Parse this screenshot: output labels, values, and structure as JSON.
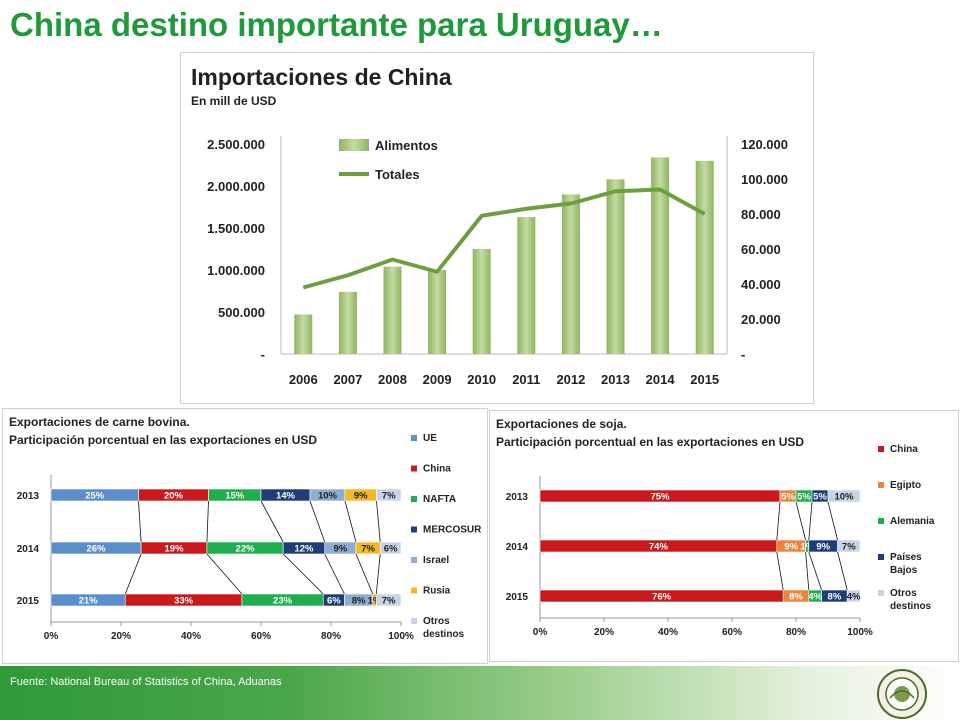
{
  "page_title": "China destino importante para Uruguay…",
  "footer": "Fuente:   National Bureau of Statistics of China, Aduanas",
  "colors": {
    "title": "#1f9a3a",
    "alimentos": "#a9c97e",
    "totales": "#6e9f3f",
    "series": [
      "#5b8fcc",
      "#c9191c",
      "#1fae4e",
      "#1f3d78",
      "#8fadd0",
      "#f5b922",
      "#c7d3e8"
    ]
  },
  "logo_icon": "asociacion-rural-seal-icon",
  "chart_data": [
    {
      "type": "bar",
      "title": "Importaciones de China",
      "subtitle": "En mill de USD",
      "categories": [
        "2006",
        "2007",
        "2008",
        "2009",
        "2010",
        "2011",
        "2012",
        "2013",
        "2014",
        "2015"
      ],
      "series": [
        {
          "name": "Alimentos",
          "type": "bar",
          "axis": "left",
          "values": [
            470000,
            740000,
            1040000,
            1000000,
            1250000,
            1630000,
            1900000,
            2080000,
            2340000,
            2300000
          ]
        },
        {
          "name": "Totales",
          "type": "line",
          "axis": "right",
          "values": [
            38000,
            45000,
            54000,
            47000,
            79000,
            83000,
            86000,
            93000,
            94000,
            80000
          ]
        }
      ],
      "yleft_ticks": [
        "-",
        "500.000",
        "1.000.000",
        "1.500.000",
        "2.000.000",
        "2.500.000"
      ],
      "yleft_lim": [
        0,
        2500000
      ],
      "yright_ticks": [
        "-",
        "20.000",
        "40.000",
        "60.000",
        "80.000",
        "100.000",
        "120.000"
      ],
      "yright_lim": [
        0,
        120000
      ],
      "legend_position": "top-left",
      "grid": false
    },
    {
      "type": "bar",
      "orientation": "horizontal",
      "stacked": "percent",
      "title": "Exportaciones de carne bovina.",
      "subtitle": "Participación porcentual en las exportaciones en USD",
      "categories": [
        "2013",
        "2014",
        "2015"
      ],
      "series": [
        {
          "name": "UE",
          "values": [
            25,
            26,
            21
          ],
          "labels": [
            "25%",
            "26%",
            "21%"
          ]
        },
        {
          "name": "China",
          "values": [
            20,
            19,
            33
          ],
          "labels": [
            "20%",
            "19%",
            "33%"
          ]
        },
        {
          "name": "NAFTA",
          "values": [
            15,
            22,
            23
          ],
          "labels": [
            "15%",
            "22%",
            "23%"
          ]
        },
        {
          "name": "MERCOSUR",
          "values": [
            14,
            12,
            6
          ],
          "labels": [
            "14%",
            "12%",
            "6%"
          ]
        },
        {
          "name": "Israel",
          "values": [
            10,
            9,
            8
          ],
          "labels": [
            "10%",
            "9%",
            "8%"
          ]
        },
        {
          "name": "Rusia",
          "values": [
            9,
            7,
            1
          ],
          "labels": [
            "9%",
            "7%",
            "1%"
          ]
        },
        {
          "name": "Otros destinos",
          "values": [
            7,
            6,
            7
          ],
          "labels": [
            "7%",
            "6%",
            "7%"
          ]
        }
      ],
      "x_ticks": [
        "0%",
        "20%",
        "40%",
        "60%",
        "80%",
        "100%"
      ],
      "xlim": [
        0,
        100
      ],
      "legend_position": "right"
    },
    {
      "type": "bar",
      "orientation": "horizontal",
      "stacked": "percent",
      "title": "Exportaciones de soja.",
      "subtitle": "Participación porcentual en las exportaciones en USD",
      "categories": [
        "2013",
        "2014",
        "2015"
      ],
      "series": [
        {
          "name": "China",
          "values": [
            75,
            74,
            76
          ],
          "labels": [
            "75%",
            "74%",
            "76%"
          ]
        },
        {
          "name": "Egipto",
          "values": [
            5,
            9,
            8
          ],
          "labels": [
            "5%",
            "9%",
            "8%"
          ]
        },
        {
          "name": "Alemania",
          "values": [
            5,
            1,
            4
          ],
          "labels": [
            "5%",
            "1%",
            "4%"
          ]
        },
        {
          "name": "Países Bajos",
          "values": [
            5,
            9,
            8
          ],
          "labels": [
            "5%",
            "9%",
            "8%"
          ]
        },
        {
          "name": "Otros destinos",
          "values": [
            10,
            7,
            4
          ],
          "labels": [
            "10%",
            "7%",
            "4%"
          ]
        }
      ],
      "x_ticks": [
        "0%",
        "20%",
        "40%",
        "60%",
        "80%",
        "100%"
      ],
      "xlim": [
        0,
        100
      ],
      "legend_position": "right"
    }
  ]
}
